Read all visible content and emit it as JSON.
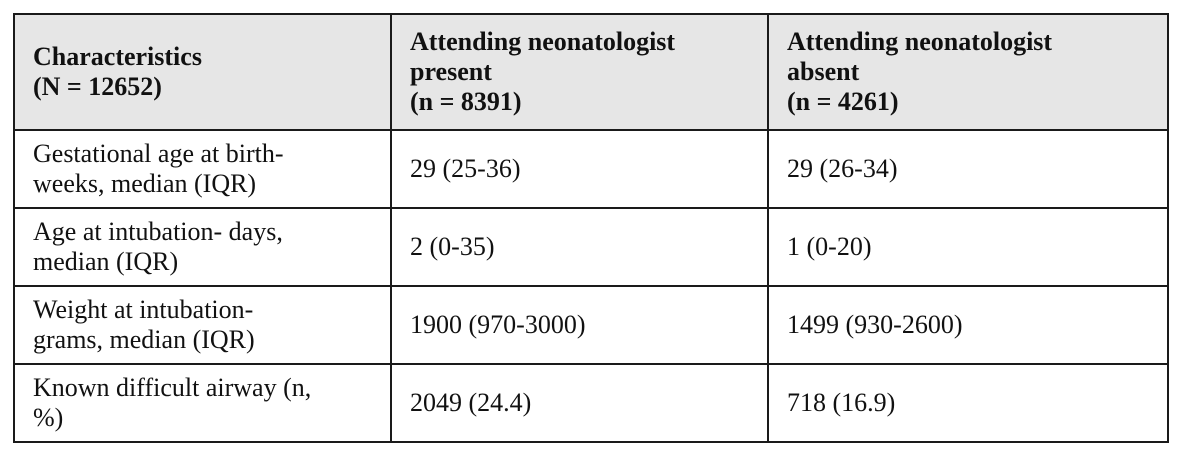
{
  "table": {
    "headers": [
      [
        "Characteristics",
        "(N = 12652)"
      ],
      [
        "Attending neonatologist",
        "present",
        "(n = 8391)"
      ],
      [
        "Attending neonatologist",
        "absent",
        "(n = 4261)"
      ]
    ],
    "rows": [
      {
        "label": [
          "Gestational age at birth-",
          "weeks, median (IQR)"
        ],
        "present": "29 (25-36)",
        "absent": "29 (26-34)"
      },
      {
        "label": [
          "Age at intubation- days,",
          "median (IQR)"
        ],
        "present": "2 (0-35)",
        "absent": "1 (0-20)"
      },
      {
        "label": [
          "Weight at intubation-",
          "grams, median (IQR)"
        ],
        "present": "1900 (970-3000)",
        "absent": "1499 (930-2600)"
      },
      {
        "label": [
          "Known difficult airway (n,",
          "%)"
        ],
        "present": "2049 (24.4)",
        "absent": "718 (16.9)"
      }
    ]
  }
}
